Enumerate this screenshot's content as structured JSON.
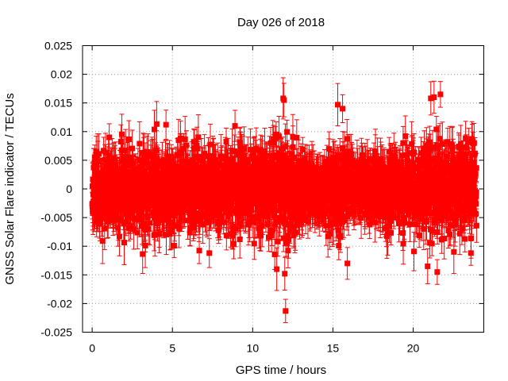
{
  "chart_data": {
    "type": "scatter",
    "title": "Day 026 of 2018",
    "xlabel": "GPS time / hours",
    "ylabel": "GNSS Solar Flare indicator / TECUs",
    "xlim": [
      -0.6,
      24.4
    ],
    "ylim": [
      -0.025,
      0.025
    ],
    "grid": true,
    "x_ticks": [
      0,
      5,
      10,
      15,
      20
    ],
    "x_tick_labels": [
      "0",
      "5",
      "10",
      "15",
      "20"
    ],
    "y_ticks": [
      0.025,
      0.02,
      0.015,
      0.01,
      0.005,
      0,
      -0.005,
      -0.01,
      -0.015,
      -0.02,
      -0.025
    ],
    "y_tick_labels": [
      "0.025",
      "0.02",
      "0.015",
      "0.01",
      "0.005",
      "0",
      "-0.005",
      "-0.01",
      "-0.015",
      "-0.02",
      "-0.025"
    ],
    "series": [
      {
        "name": "solar flare indicator",
        "color": "#ff0000",
        "marker": "square",
        "error_bars": true,
        "x_start": 0.0,
        "x_end": 23.95,
        "n_points": 2880,
        "noise_envelope": {
          "hours": [
            0,
            2,
            4,
            6,
            8,
            9,
            10,
            11,
            12,
            12.5,
            13,
            14,
            15,
            15.5,
            16,
            17,
            18,
            19,
            20,
            21,
            21.5,
            22,
            23,
            23.95
          ],
          "sigma": [
            0.0035,
            0.0037,
            0.004,
            0.0038,
            0.0035,
            0.0036,
            0.0039,
            0.0042,
            0.0055,
            0.0045,
            0.0032,
            0.0026,
            0.0032,
            0.0042,
            0.0028,
            0.0028,
            0.0034,
            0.0038,
            0.004,
            0.0045,
            0.005,
            0.0045,
            0.004,
            0.004
          ]
        },
        "error_bar_half_width_range": [
          0.002,
          0.004
        ],
        "outliers": [
          {
            "x": 11.9,
            "y": 0.0158
          },
          {
            "x": 11.95,
            "y": 0.0155
          },
          {
            "x": 12.0,
            "y": -0.0148
          },
          {
            "x": 12.05,
            "y": -0.0213
          },
          {
            "x": 11.5,
            "y": -0.014
          },
          {
            "x": 15.3,
            "y": 0.0147
          },
          {
            "x": 15.6,
            "y": 0.014
          },
          {
            "x": 15.9,
            "y": -0.013
          },
          {
            "x": 21.1,
            "y": 0.0158
          },
          {
            "x": 21.3,
            "y": 0.016
          },
          {
            "x": 21.7,
            "y": 0.0165
          },
          {
            "x": 21.5,
            "y": -0.0145
          },
          {
            "x": 20.9,
            "y": -0.0135
          },
          {
            "x": 7.3,
            "y": -0.0112
          },
          {
            "x": 8.9,
            "y": 0.011
          },
          {
            "x": 9.2,
            "y": -0.0088
          },
          {
            "x": 23.6,
            "y": -0.0112
          },
          {
            "x": 4.6,
            "y": 0.0112
          }
        ]
      }
    ]
  }
}
